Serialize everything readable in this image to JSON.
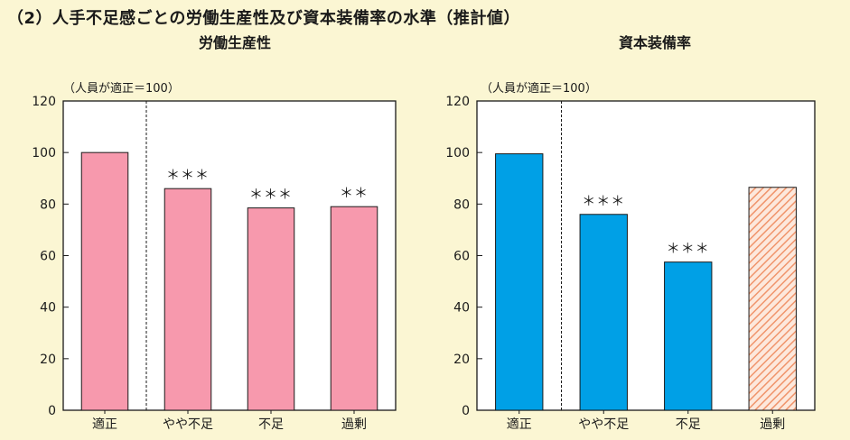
{
  "page_title": "（2）人手不足感ごとの労働生産性及び資本装備率の水準（推計値）",
  "chart_data": [
    {
      "type": "bar",
      "title": "労働生産性",
      "ylabel": "（人員が適正＝100）",
      "ylim": [
        0,
        120
      ],
      "yticks": [
        0,
        20,
        40,
        60,
        80,
        100,
        120
      ],
      "categories": [
        "適正",
        "やや不足",
        "不足",
        "過剰"
      ],
      "values": [
        100,
        86,
        78.5,
        79
      ],
      "significance": [
        "",
        "＊＊＊",
        "＊＊＊",
        "＊＊"
      ],
      "bar_color": "#f799ad",
      "hatched": [
        false,
        false,
        false,
        false
      ],
      "divider_after_category": 0,
      "grid": false
    },
    {
      "type": "bar",
      "title": "資本装備率",
      "ylabel": "（人員が適正＝100）",
      "ylim": [
        0,
        120
      ],
      "yticks": [
        0,
        20,
        40,
        60,
        80,
        100,
        120
      ],
      "categories": [
        "適正",
        "やや不足",
        "不足",
        "過剰"
      ],
      "values": [
        99.5,
        76,
        57.5,
        86.5
      ],
      "significance": [
        "",
        "＊＊＊",
        "＊＊＊",
        ""
      ],
      "bar_color": "#00a0e6",
      "hatch_color": "#f0946b",
      "hatched": [
        false,
        false,
        false,
        true
      ],
      "divider_after_category": 0,
      "grid": false
    }
  ]
}
